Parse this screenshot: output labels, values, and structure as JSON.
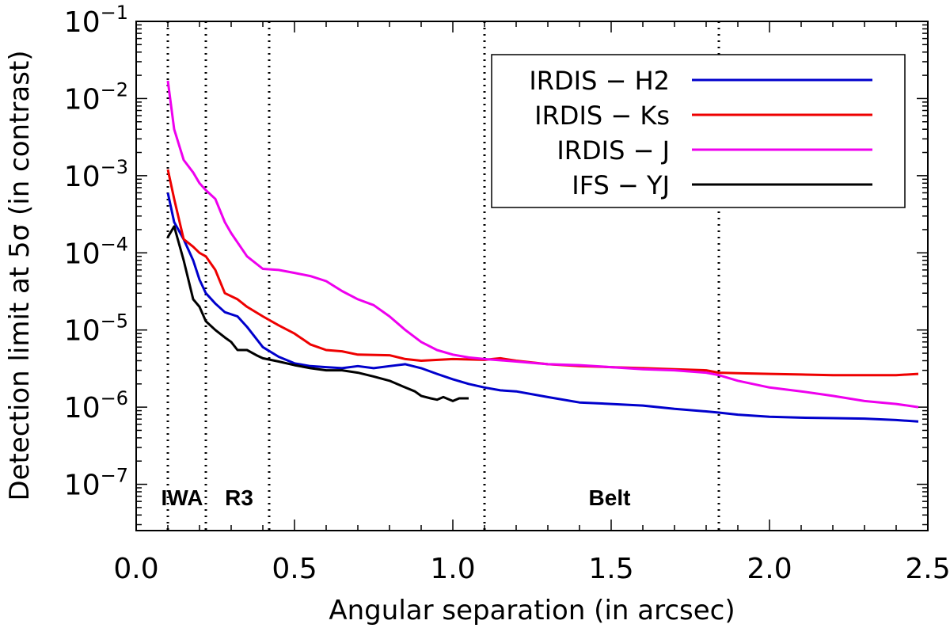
{
  "chart_data": {
    "type": "line",
    "xlabel": "Angular separation (in arcsec)",
    "ylabel": "Detection limit at 5σ (in contrast)",
    "xlim": [
      0.0,
      2.5
    ],
    "ylim_log10": [
      -7.6,
      -1
    ],
    "y_scale": "log",
    "x_ticks": [
      {
        "value": 0.0,
        "label": "0.0"
      },
      {
        "value": 0.5,
        "label": "0.5"
      },
      {
        "value": 1.0,
        "label": "1.0"
      },
      {
        "value": 1.5,
        "label": "1.5"
      },
      {
        "value": 2.0,
        "label": "2.0"
      },
      {
        "value": 2.5,
        "label": "2.5"
      }
    ],
    "y_ticks": [
      {
        "exp": -1,
        "base": "10",
        "sup": "−1"
      },
      {
        "exp": -2,
        "base": "10",
        "sup": "−2"
      },
      {
        "exp": -3,
        "base": "10",
        "sup": "−3"
      },
      {
        "exp": -4,
        "base": "10",
        "sup": "−4"
      },
      {
        "exp": -5,
        "base": "10",
        "sup": "−5"
      },
      {
        "exp": -6,
        "base": "10",
        "sup": "−6"
      },
      {
        "exp": -7,
        "base": "10",
        "sup": "−7"
      }
    ],
    "vertical_lines": [
      0.1,
      0.22,
      0.42,
      1.1,
      1.84
    ],
    "region_labels": [
      {
        "label": "IWA",
        "x": 0.12
      },
      {
        "label": "R3",
        "x": 0.3
      },
      {
        "label": "Belt",
        "x": 1.47
      }
    ],
    "legend_position": "top-right",
    "series": [
      {
        "name": "IRDIS − H2",
        "color": "#0000cc",
        "x": [
          0.1,
          0.12,
          0.15,
          0.18,
          0.2,
          0.22,
          0.25,
          0.28,
          0.32,
          0.35,
          0.4,
          0.45,
          0.5,
          0.55,
          0.6,
          0.65,
          0.7,
          0.75,
          0.8,
          0.85,
          0.9,
          0.95,
          1.0,
          1.05,
          1.1,
          1.15,
          1.2,
          1.3,
          1.4,
          1.5,
          1.6,
          1.7,
          1.8,
          1.84,
          1.9,
          2.0,
          2.1,
          2.2,
          2.3,
          2.4,
          2.47
        ],
        "y": [
          0.0006,
          0.00025,
          0.00015,
          8e-05,
          4.5e-05,
          3e-05,
          2.2e-05,
          1.7e-05,
          1.5e-05,
          1.1e-05,
          6e-06,
          4.5e-06,
          3.7e-06,
          3.4e-06,
          3.3e-06,
          3.2e-06,
          3.4e-06,
          3.2e-06,
          3.4e-06,
          3.6e-06,
          3.2e-06,
          2.7e-06,
          2.3e-06,
          2e-06,
          1.8e-06,
          1.65e-06,
          1.6e-06,
          1.35e-06,
          1.15e-06,
          1.1e-06,
          1.05e-06,
          9.5e-07,
          8.8e-07,
          8.5e-07,
          8e-07,
          7.5e-07,
          7.3e-07,
          7.2e-07,
          7.1e-07,
          6.8e-07,
          6.5e-07
        ]
      },
      {
        "name": "IRDIS − Ks",
        "color": "#ee0000",
        "x": [
          0.1,
          0.12,
          0.15,
          0.18,
          0.2,
          0.22,
          0.25,
          0.28,
          0.32,
          0.35,
          0.4,
          0.45,
          0.5,
          0.55,
          0.6,
          0.65,
          0.7,
          0.8,
          0.85,
          0.9,
          1.0,
          1.1,
          1.15,
          1.2,
          1.3,
          1.4,
          1.5,
          1.6,
          1.7,
          1.8,
          1.84,
          1.9,
          2.0,
          2.1,
          2.2,
          2.3,
          2.4,
          2.47
        ],
        "y": [
          0.0012,
          0.0005,
          0.00015,
          0.00012,
          0.0001,
          9e-05,
          6e-05,
          3e-05,
          2.5e-05,
          2e-05,
          1.5e-05,
          1.15e-05,
          9e-06,
          6.5e-06,
          5.5e-06,
          5.3e-06,
          4.8e-06,
          4.7e-06,
          4.2e-06,
          4e-06,
          4.2e-06,
          4.1e-06,
          4.3e-06,
          4e-06,
          3.6e-06,
          3.4e-06,
          3.3e-06,
          3.2e-06,
          3.1e-06,
          3e-06,
          2.8e-06,
          2.75e-06,
          2.7e-06,
          2.65e-06,
          2.6e-06,
          2.6e-06,
          2.6e-06,
          2.7e-06
        ]
      },
      {
        "name": "IRDIS − J",
        "color": "#ee00ee",
        "x": [
          0.1,
          0.12,
          0.15,
          0.18,
          0.2,
          0.22,
          0.25,
          0.28,
          0.3,
          0.35,
          0.4,
          0.45,
          0.5,
          0.55,
          0.6,
          0.65,
          0.7,
          0.75,
          0.8,
          0.85,
          0.9,
          0.95,
          1.0,
          1.05,
          1.1,
          1.2,
          1.3,
          1.4,
          1.5,
          1.6,
          1.7,
          1.8,
          1.84,
          1.9,
          2.0,
          2.1,
          2.2,
          2.3,
          2.4,
          2.47
        ],
        "y": [
          0.017,
          0.004,
          0.0016,
          0.0011,
          0.0008,
          0.00065,
          0.0005,
          0.00025,
          0.00018,
          9e-05,
          6.2e-05,
          6e-05,
          5.5e-05,
          5e-05,
          4.3e-05,
          3.2e-05,
          2.5e-05,
          2.1e-05,
          1.5e-05,
          1e-05,
          7e-06,
          5.5e-06,
          4.8e-06,
          4.4e-06,
          4.2e-06,
          3.9e-06,
          3.6e-06,
          3.5e-06,
          3.3e-06,
          3.1e-06,
          3e-06,
          2.8e-06,
          2.6e-06,
          2.2e-06,
          1.8e-06,
          1.6e-06,
          1.4e-06,
          1.2e-06,
          1.1e-06,
          1e-06
        ]
      },
      {
        "name": "IFS − YJ",
        "color": "#000000",
        "x": [
          0.1,
          0.12,
          0.15,
          0.18,
          0.2,
          0.22,
          0.25,
          0.28,
          0.3,
          0.32,
          0.35,
          0.38,
          0.4,
          0.45,
          0.5,
          0.55,
          0.6,
          0.65,
          0.7,
          0.75,
          0.8,
          0.85,
          0.88,
          0.9,
          0.93,
          0.95,
          0.97,
          1.0,
          1.02,
          1.05
        ],
        "y": [
          0.00016,
          0.00022,
          8e-05,
          2.5e-05,
          2e-05,
          1.3e-05,
          1e-05,
          8e-06,
          7e-06,
          5.5e-06,
          5.5e-06,
          4.7e-06,
          4.3e-06,
          3.9e-06,
          3.5e-06,
          3.2e-06,
          3e-06,
          3e-06,
          2.8e-06,
          2.5e-06,
          2.2e-06,
          1.8e-06,
          1.6e-06,
          1.4e-06,
          1.3e-06,
          1.25e-06,
          1.35e-06,
          1.2e-06,
          1.3e-06,
          1.3e-06
        ]
      }
    ]
  }
}
